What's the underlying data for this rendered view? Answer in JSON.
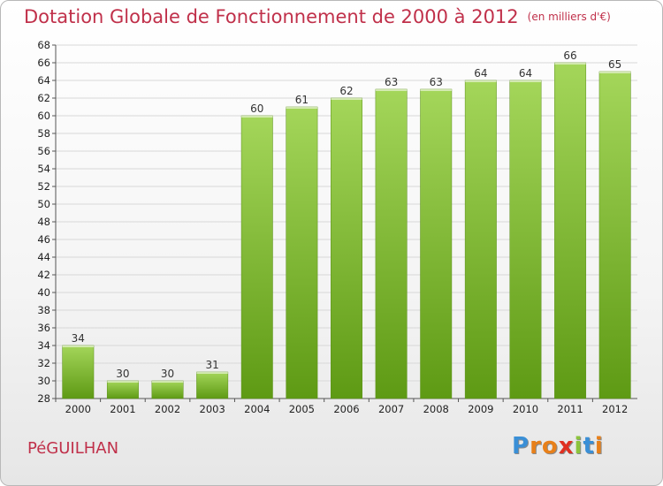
{
  "title": "Dotation Globale de Fonctionnement de 2000 à 2012",
  "unit": "(en milliers d'€)",
  "commune": "PéGUILHAN",
  "logo": {
    "letters": [
      "P",
      "r",
      "o",
      "x",
      "i",
      "t",
      "i"
    ],
    "colors": [
      "#3a8fd6",
      "#e8801a",
      "#e8801a",
      "#e03020",
      "#8cc43c",
      "#3a8fd6",
      "#e8801a"
    ]
  },
  "colors": {
    "bar_light": "#a4d65a",
    "bar_dark": "#5e9a14",
    "title": "#c0304a",
    "grid": "#d8d8d8"
  },
  "chart_data": {
    "type": "bar",
    "title": "Dotation Globale de Fonctionnement de 2000 à 2012",
    "xlabel": "",
    "ylabel": "",
    "categories": [
      "2000",
      "2001",
      "2002",
      "2003",
      "2004",
      "2005",
      "2006",
      "2007",
      "2008",
      "2009",
      "2010",
      "2011",
      "2012"
    ],
    "values": [
      34,
      30,
      30,
      31,
      60,
      61,
      62,
      63,
      63,
      64,
      64,
      66,
      65
    ],
    "ylim": [
      28,
      68
    ],
    "ytick_step": 2,
    "grid": true,
    "legend": "none"
  }
}
